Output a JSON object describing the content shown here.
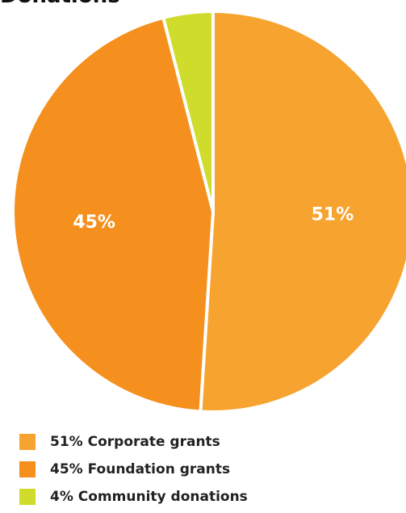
{
  "chart_data": {
    "type": "pie",
    "title": "Donations",
    "slices": [
      {
        "label": "Corporate grants",
        "value": 51,
        "value_label": "51%",
        "legend": "51% Corporate grants",
        "color": "#F7A32F"
      },
      {
        "label": "Foundation grants",
        "value": 45,
        "value_label": "45%",
        "legend": "45% Foundation grants",
        "color": "#F5901E"
      },
      {
        "label": "Community donations",
        "value": 4,
        "value_label": "",
        "legend": "4% Community donations",
        "color": "#CFDC2B"
      }
    ],
    "legend_position": "bottom-left"
  }
}
